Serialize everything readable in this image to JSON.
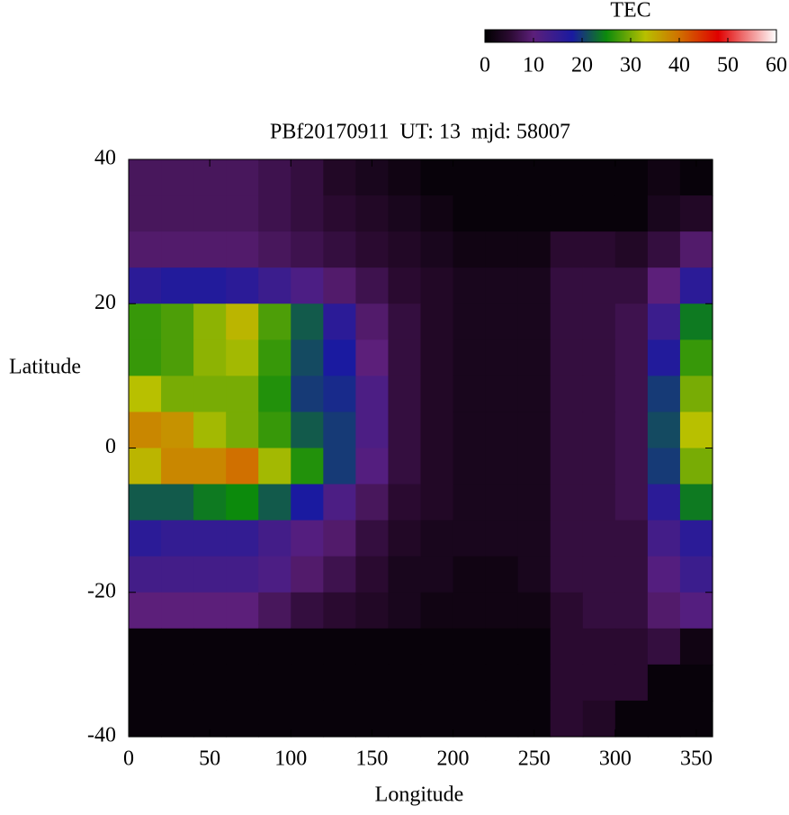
{
  "chart_data": {
    "type": "heatmap",
    "title": "PBf20170911  UT: 13  mjd: 58007",
    "xlabel": "Longitude",
    "ylabel": "Latitude",
    "colorbar_label": "TEC",
    "x": [
      10,
      30,
      50,
      70,
      90,
      110,
      130,
      150,
      170,
      190,
      210,
      230,
      250,
      270,
      290,
      310,
      330,
      350
    ],
    "y": [
      37.5,
      32.5,
      27.5,
      22.5,
      17.5,
      12.5,
      7.5,
      2.5,
      -2.5,
      -7.5,
      -12.5,
      -17.5,
      -22.5,
      -27.5,
      -32.5,
      -37.5
    ],
    "z": [
      [
        8,
        8,
        8,
        8,
        7,
        6,
        4,
        3,
        2,
        1,
        1,
        1,
        1,
        1,
        1,
        1,
        2,
        1
      ],
      [
        8,
        8,
        8,
        8,
        7,
        6,
        5,
        4,
        3,
        2,
        1,
        1,
        1,
        1,
        1,
        1,
        3,
        4
      ],
      [
        9,
        9,
        9,
        9,
        8,
        7,
        6,
        5,
        4,
        3,
        2,
        2,
        2,
        5,
        5,
        4,
        6,
        9
      ],
      [
        16,
        17,
        17,
        16,
        14,
        12,
        9,
        7,
        5,
        4,
        3,
        3,
        3,
        6,
        6,
        6,
        10,
        16
      ],
      [
        27,
        28,
        31,
        34,
        28,
        22,
        16,
        9,
        6,
        4,
        3,
        3,
        3,
        6,
        6,
        7,
        14,
        24
      ],
      [
        27,
        28,
        31,
        32,
        27,
        21,
        18,
        10,
        6,
        4,
        3,
        3,
        3,
        6,
        6,
        7,
        17,
        27
      ],
      [
        33,
        30,
        30,
        30,
        26,
        20,
        19,
        12,
        6,
        4,
        3,
        3,
        3,
        6,
        6,
        7,
        20,
        30
      ],
      [
        38,
        37,
        32,
        30,
        27,
        22,
        20,
        12,
        6,
        4,
        3,
        3,
        3,
        6,
        6,
        7,
        21,
        33
      ],
      [
        34,
        38,
        38,
        40,
        32,
        26,
        20,
        11,
        6,
        4,
        3,
        3,
        3,
        6,
        6,
        7,
        20,
        30
      ],
      [
        22,
        22,
        24,
        25,
        22,
        18,
        12,
        8,
        5,
        4,
        3,
        3,
        3,
        6,
        6,
        7,
        16,
        24
      ],
      [
        16,
        15,
        15,
        15,
        13,
        11,
        9,
        6,
        4,
        3,
        3,
        3,
        3,
        6,
        6,
        6,
        13,
        16
      ],
      [
        13,
        13,
        13,
        13,
        12,
        9,
        7,
        5,
        3,
        3,
        2,
        2,
        3,
        6,
        6,
        6,
        11,
        14
      ],
      [
        10,
        10,
        10,
        10,
        8,
        6,
        5,
        4,
        3,
        2,
        2,
        2,
        2,
        5,
        6,
        6,
        9,
        11
      ],
      [
        1,
        1,
        1,
        1,
        1,
        1,
        1,
        1,
        1,
        1,
        1,
        1,
        1,
        5,
        5,
        5,
        6,
        2
      ],
      [
        1,
        1,
        1,
        1,
        1,
        1,
        1,
        1,
        1,
        1,
        1,
        1,
        1,
        5,
        5,
        5,
        1,
        1
      ],
      [
        1,
        1,
        1,
        1,
        1,
        1,
        1,
        1,
        1,
        1,
        1,
        1,
        1,
        5,
        4,
        1,
        1,
        1
      ]
    ],
    "xlim": [
      0,
      360
    ],
    "xticks": [
      0,
      50,
      100,
      150,
      200,
      250,
      300,
      350
    ],
    "ylim": [
      -40,
      40
    ],
    "yticks": [
      -40,
      -20,
      0,
      20,
      40
    ],
    "clim": [
      0,
      60
    ],
    "cticks": [
      0,
      10,
      20,
      30,
      40,
      50,
      60
    ],
    "colorscale": [
      [
        0,
        "#000000"
      ],
      [
        5,
        "#2a0a30"
      ],
      [
        10,
        "#5c1f7a"
      ],
      [
        18,
        "#1a1aa0"
      ],
      [
        25,
        "#0c8a0c"
      ],
      [
        33,
        "#b8c000"
      ],
      [
        40,
        "#d07000"
      ],
      [
        48,
        "#e00000"
      ],
      [
        60,
        "#ffffff"
      ]
    ]
  }
}
